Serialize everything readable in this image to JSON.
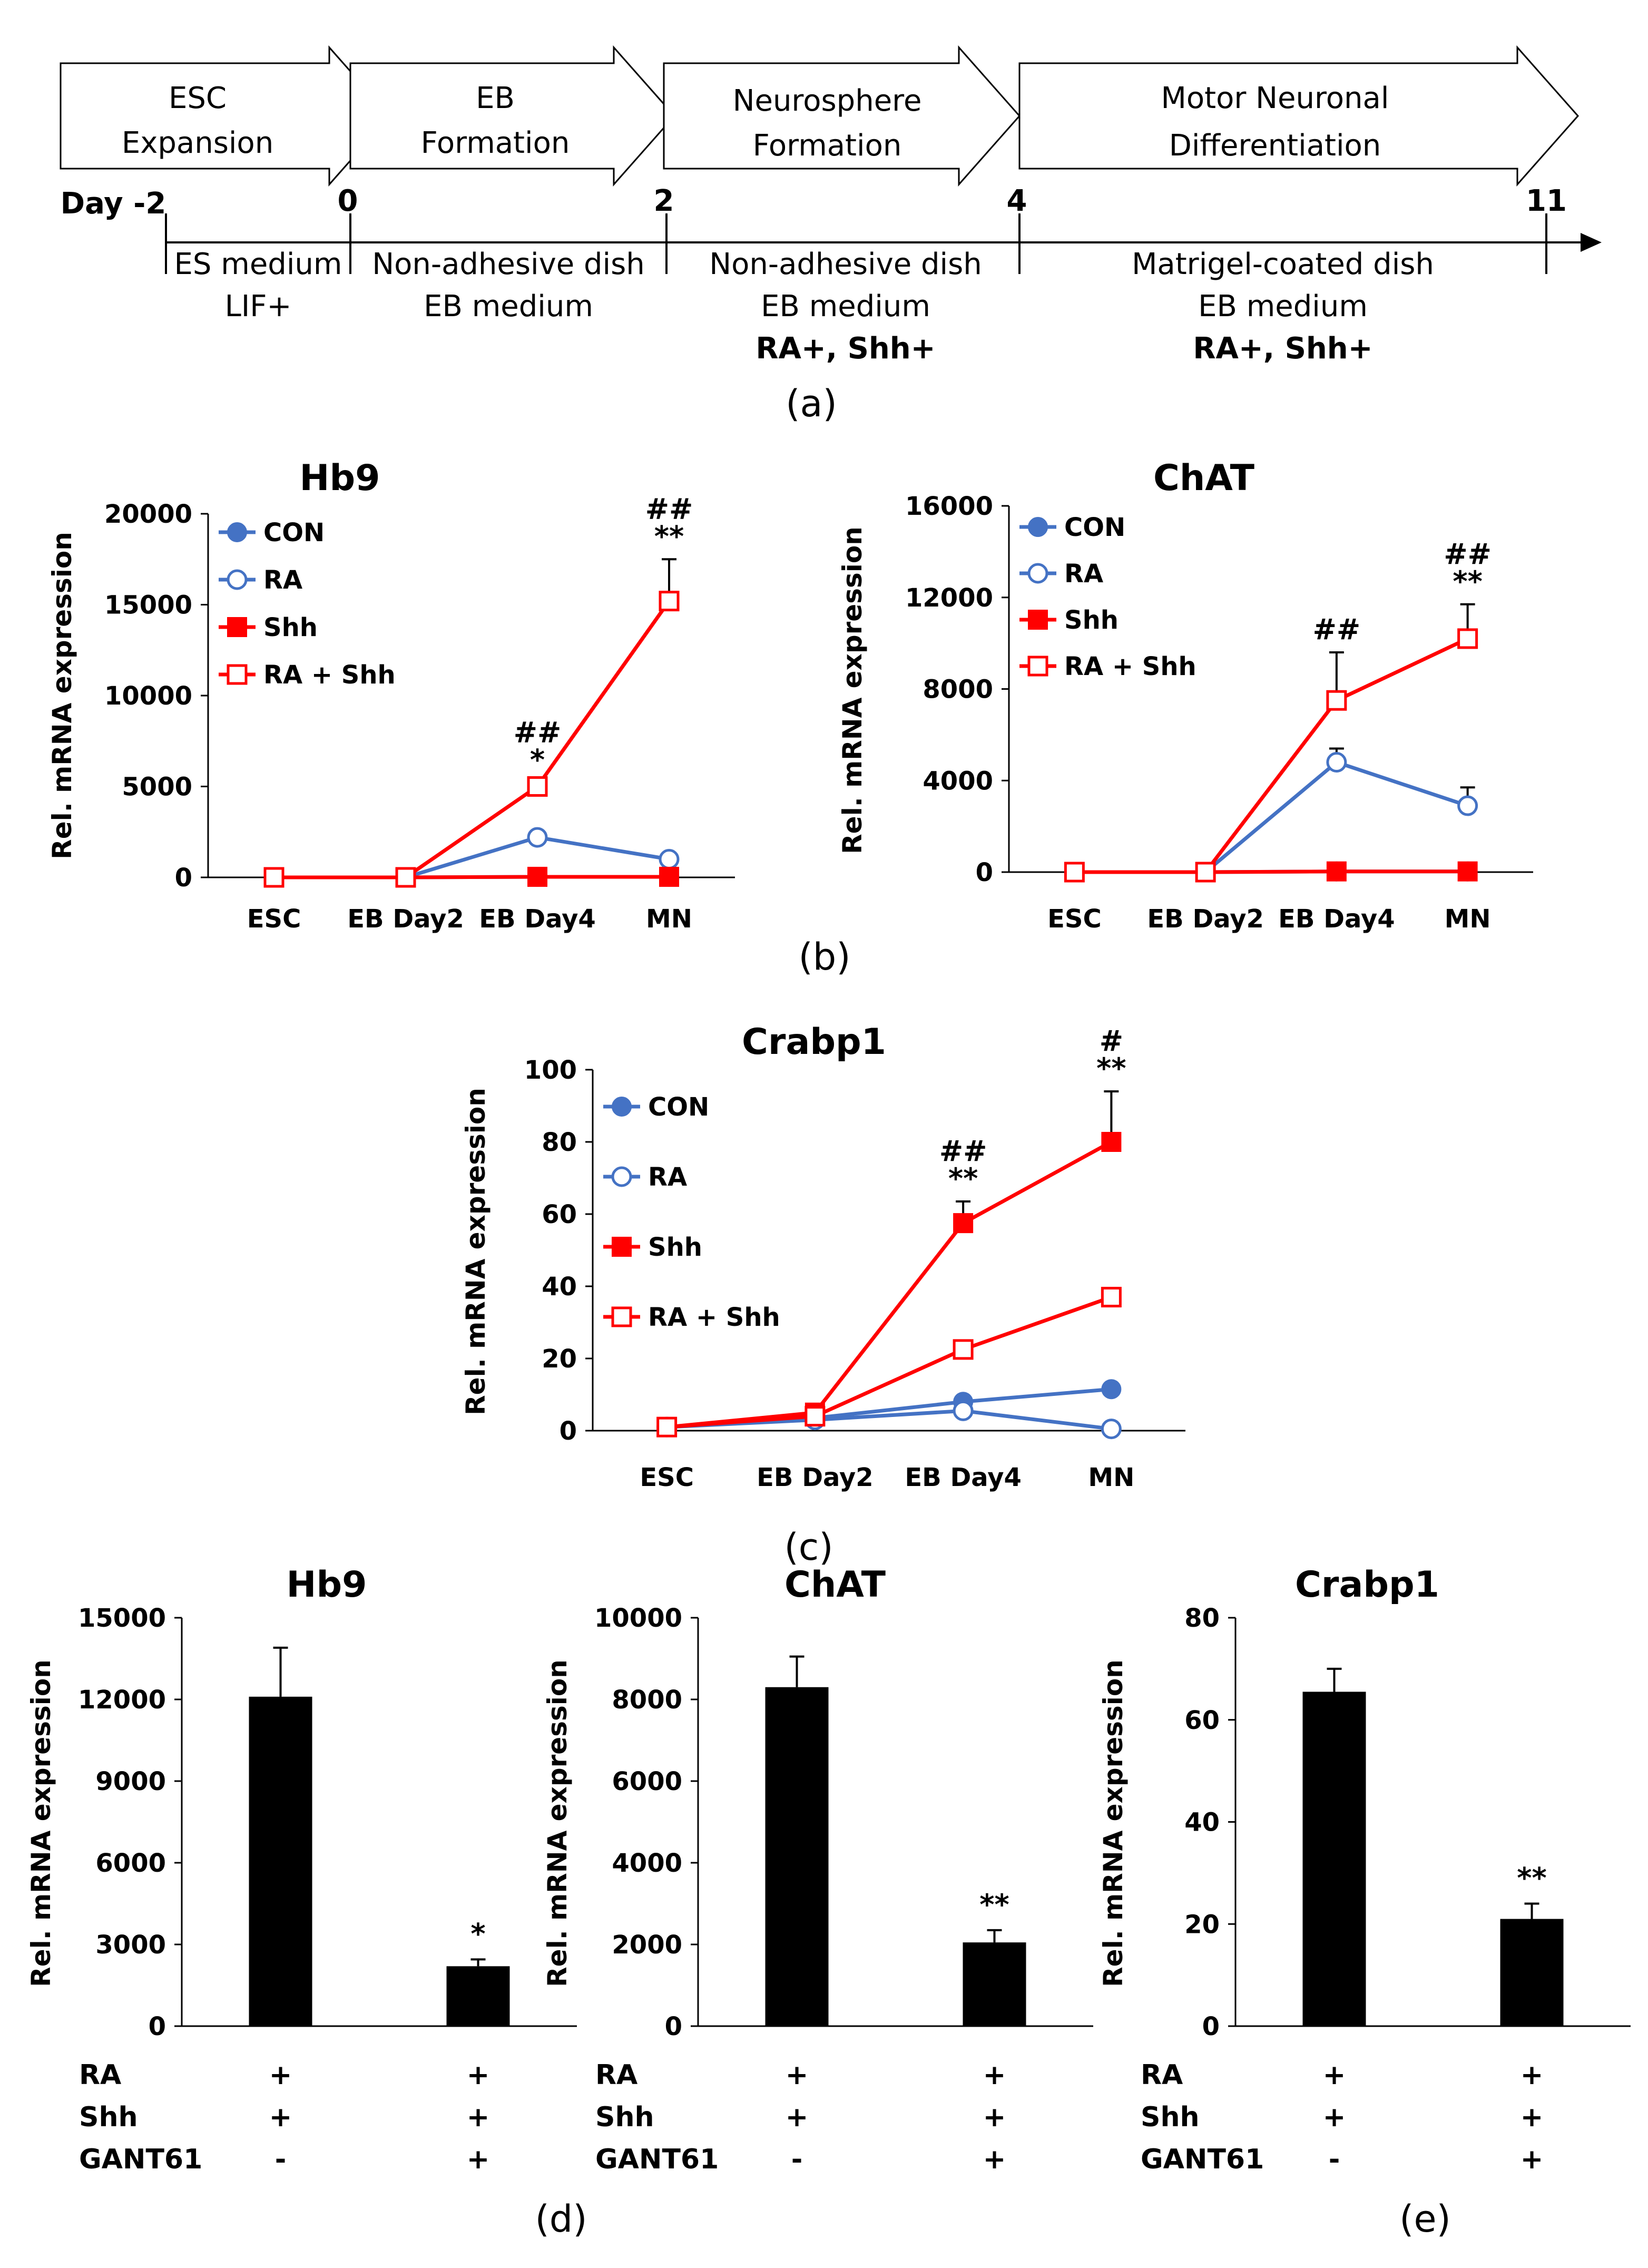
{
  "protocol": {
    "stages": [
      {
        "line1": "ESC",
        "line2": "Expansion"
      },
      {
        "line1": "EB",
        "line2": "Formation"
      },
      {
        "line1": "Neurosphere",
        "line2": "Formation"
      },
      {
        "line1": "Motor Neuronal",
        "line2": "Differentiation"
      }
    ],
    "days": [
      "Day -2",
      "0",
      "2",
      "4",
      "11"
    ],
    "conditions": [
      {
        "line1": "ES medium",
        "line2": "LIF+",
        "line3": ""
      },
      {
        "line1": "Non-adhesive dish",
        "line2": "EB medium",
        "line3": ""
      },
      {
        "line1": "Non-adhesive dish",
        "line2": "EB medium",
        "line3": "RA+, Shh+"
      },
      {
        "line1": "Matrigel-coated dish",
        "line2": "EB medium",
        "line3": "RA+, Shh+"
      }
    ],
    "panel_label": "(a)"
  },
  "panel_labels": {
    "b": "(b)",
    "c": "(c)",
    "d": "(d)",
    "e": "(e)"
  },
  "colors": {
    "blue": "#4472C4",
    "red": "#FF0000",
    "black": "#000000"
  },
  "chart_data": [
    {
      "id": "hb9-line",
      "type": "line",
      "title": "Hb9",
      "ylabel": "Rel. mRNA expression",
      "categories": [
        "ESC",
        "EB Day2",
        "EB Day4",
        "MN"
      ],
      "ylim": [
        0,
        20000
      ],
      "yticks": [
        "0",
        "5000",
        "10000",
        "15000",
        "20000"
      ],
      "series": [
        {
          "name": "CON",
          "values": [
            0,
            0,
            30,
            30
          ],
          "color": "#4472C4",
          "marker": "filled-circle"
        },
        {
          "name": "RA",
          "values": [
            0,
            0,
            2200,
            1000
          ],
          "color": "#4472C4",
          "marker": "open-circle"
        },
        {
          "name": "Shh",
          "values": [
            0,
            0,
            30,
            30
          ],
          "color": "#FF0000",
          "marker": "filled-square"
        },
        {
          "name": "RA + Shh",
          "values": [
            0,
            0,
            5000,
            15200
          ],
          "errors": [
            0,
            0,
            200,
            2300
          ],
          "color": "#FF0000",
          "marker": "open-square"
        }
      ],
      "annotations": [
        {
          "category": "EB Day4",
          "lines": [
            "##",
            "*"
          ]
        },
        {
          "category": "MN",
          "lines": [
            "##",
            "**"
          ]
        }
      ]
    },
    {
      "id": "chat-line",
      "type": "line",
      "title": "ChAT",
      "ylabel": "Rel. mRNA expression",
      "categories": [
        "ESC",
        "EB Day2",
        "EB Day4",
        "MN"
      ],
      "ylim": [
        0,
        16000
      ],
      "yticks": [
        "0",
        "4000",
        "8000",
        "12000",
        "16000"
      ],
      "series": [
        {
          "name": "CON",
          "values": [
            0,
            0,
            30,
            30
          ],
          "color": "#4472C4",
          "marker": "filled-circle"
        },
        {
          "name": "RA",
          "values": [
            0,
            0,
            4800,
            2900
          ],
          "errors": [
            0,
            0,
            600,
            800
          ],
          "color": "#4472C4",
          "marker": "open-circle"
        },
        {
          "name": "Shh",
          "values": [
            0,
            0,
            30,
            30
          ],
          "color": "#FF0000",
          "marker": "filled-square"
        },
        {
          "name": "RA + Shh",
          "values": [
            0,
            0,
            7500,
            10200
          ],
          "errors": [
            0,
            0,
            2100,
            1500
          ],
          "color": "#FF0000",
          "marker": "open-square"
        }
      ],
      "annotations": [
        {
          "category": "EB Day4",
          "lines": [
            "##"
          ]
        },
        {
          "category": "MN",
          "lines": [
            "##",
            "**"
          ]
        }
      ]
    },
    {
      "id": "crabp1-line",
      "type": "line",
      "title": "Crabp1",
      "ylabel": "Rel. mRNA expression",
      "categories": [
        "ESC",
        "EB Day2",
        "EB Day4",
        "MN"
      ],
      "ylim": [
        0,
        100
      ],
      "yticks": [
        "0",
        "20",
        "40",
        "60",
        "80",
        "100"
      ],
      "series": [
        {
          "name": "CON",
          "values": [
            1,
            3.5,
            8,
            11.5
          ],
          "color": "#4472C4",
          "marker": "filled-circle"
        },
        {
          "name": "RA",
          "values": [
            1,
            3,
            5.5,
            0.5
          ],
          "color": "#4472C4",
          "marker": "open-circle"
        },
        {
          "name": "Shh",
          "values": [
            1,
            5,
            57.5,
            80
          ],
          "errors": [
            0,
            0,
            6,
            14
          ],
          "color": "#FF0000",
          "marker": "filled-square"
        },
        {
          "name": "RA + Shh",
          "values": [
            1,
            4,
            22.5,
            37
          ],
          "errors": [
            0,
            0,
            0,
            0
          ],
          "color": "#FF0000",
          "marker": "open-square"
        }
      ],
      "annotations": [
        {
          "category": "EB Day4",
          "lines": [
            "##",
            "**"
          ]
        },
        {
          "category": "MN",
          "lines": [
            "#",
            "**"
          ]
        }
      ]
    },
    {
      "id": "hb9-bar",
      "type": "bar",
      "title": "Hb9",
      "ylabel": "Rel. mRNA expression",
      "ylim": [
        0,
        15000
      ],
      "yticks": [
        "0",
        "3000",
        "6000",
        "9000",
        "12000",
        "15000"
      ],
      "values": [
        12100,
        2200
      ],
      "errors": [
        1800,
        250
      ],
      "sig": [
        "",
        "*"
      ],
      "conditions": {
        "labels": [
          "RA",
          "Shh",
          "GANT61"
        ],
        "groups": [
          [
            "+",
            "+",
            "-"
          ],
          [
            "+",
            "+",
            "+"
          ]
        ]
      }
    },
    {
      "id": "chat-bar",
      "type": "bar",
      "title": "ChAT",
      "ylabel": "Rel. mRNA expression",
      "ylim": [
        0,
        10000
      ],
      "yticks": [
        "0",
        "2000",
        "4000",
        "6000",
        "8000",
        "10000"
      ],
      "values": [
        8300,
        2050
      ],
      "errors": [
        750,
        300
      ],
      "sig": [
        "",
        "**"
      ],
      "conditions": {
        "labels": [
          "RA",
          "Shh",
          "GANT61"
        ],
        "groups": [
          [
            "+",
            "+",
            "-"
          ],
          [
            "+",
            "+",
            "+"
          ]
        ]
      }
    },
    {
      "id": "crabp1-bar",
      "type": "bar",
      "title": "Crabp1",
      "ylabel": "Rel. mRNA expression",
      "ylim": [
        0,
        80
      ],
      "yticks": [
        "0",
        "20",
        "40",
        "60",
        "80"
      ],
      "values": [
        65.5,
        21
      ],
      "errors": [
        4.5,
        3
      ],
      "sig": [
        "",
        "**"
      ],
      "conditions": {
        "labels": [
          "RA",
          "Shh",
          "GANT61"
        ],
        "groups": [
          [
            "+",
            "+",
            "-"
          ],
          [
            "+",
            "+",
            "+"
          ]
        ]
      }
    }
  ]
}
